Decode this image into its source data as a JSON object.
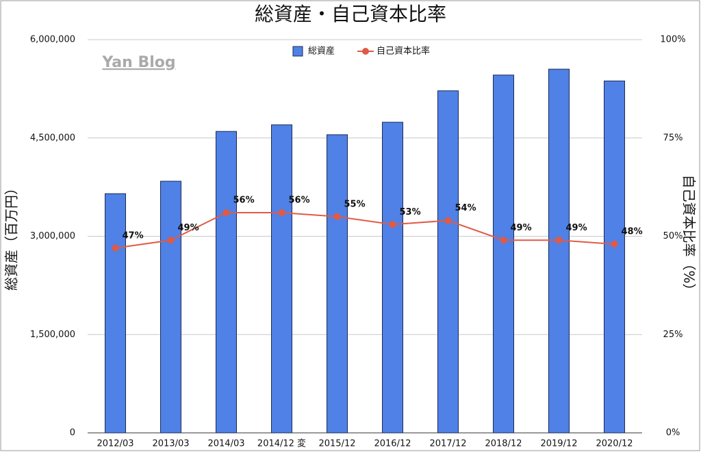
{
  "chart_data": {
    "type": "bar",
    "title": "総資産・自己資本比率",
    "annotation": "Yan Blog",
    "y_label": "総資産（百万円）",
    "y2_label": "自己資本比率（%）",
    "categories": [
      "2012/03",
      "2013/03",
      "2014/03",
      "2014/12 変",
      "2015/12",
      "2016/12",
      "2017/12",
      "2018/12",
      "2019/12",
      "2020/12"
    ],
    "series": [
      {
        "name": "総資産",
        "type": "bar",
        "color": "#4f81e6",
        "values": [
          3650000,
          3840000,
          4600000,
          4700000,
          4550000,
          4740000,
          5220000,
          5460000,
          5550000,
          5370000
        ]
      },
      {
        "name": "自己資本比率",
        "type": "line",
        "axis": "y2",
        "color": "#e05a47",
        "values": [
          47,
          49,
          56,
          56,
          55,
          53,
          54,
          49,
          49,
          48
        ],
        "value_labels": [
          "47%",
          "49%",
          "56%",
          "56%",
          "55%",
          "53%",
          "54%",
          "49%",
          "49%",
          "48%"
        ]
      }
    ],
    "ylim": [
      0,
      6000000
    ],
    "yticks": [
      0,
      {
        "value": 1500000,
        "label": "1,500,000"
      },
      {
        "value": 3000000,
        "label": "3,000,000"
      },
      {
        "value": 4500000,
        "label": "4,500,000"
      },
      {
        "value": 6000000,
        "label": "6,000,000"
      }
    ],
    "y2lim": [
      0,
      100
    ],
    "y2ticks": [
      {
        "value": 0,
        "label": "0%"
      },
      {
        "value": 25,
        "label": "25%"
      },
      {
        "value": 50,
        "label": "50%"
      },
      {
        "value": 75,
        "label": "75%"
      },
      {
        "value": 100,
        "label": "100%"
      }
    ],
    "grid": true,
    "legend": "top"
  }
}
